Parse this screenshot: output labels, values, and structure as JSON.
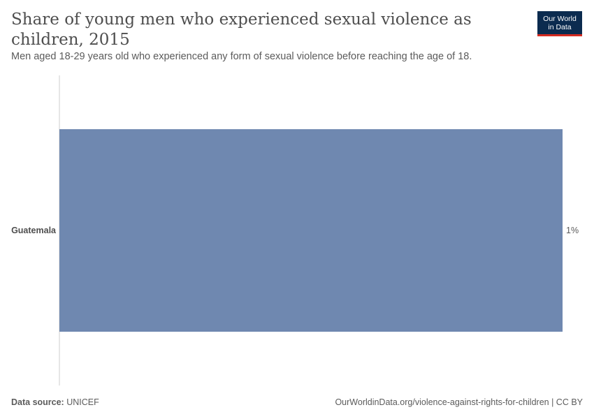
{
  "header": {
    "title": "Share of young men who experienced sexual violence as children, 2015",
    "subtitle": "Men aged 18-29 years old who experienced any form of sexual violence before reaching the age of 18.",
    "logo_line1": "Our World",
    "logo_line2": "in Data"
  },
  "footer": {
    "source_label": "Data source:",
    "source_value": "UNICEF",
    "credit": "OurWorldinData.org/violence-against-rights-for-children | CC BY"
  },
  "colors": {
    "bar": "#6f88b0",
    "axis": "#cccccc",
    "logo_bg": "#0b2b4f",
    "logo_accent": "#d42b21"
  },
  "chart_data": {
    "type": "bar",
    "orientation": "horizontal",
    "categories": [
      "Guatemala"
    ],
    "values": [
      1
    ],
    "data_labels": [
      "1%"
    ],
    "unit": "%",
    "xlim": [
      0,
      1
    ]
  }
}
